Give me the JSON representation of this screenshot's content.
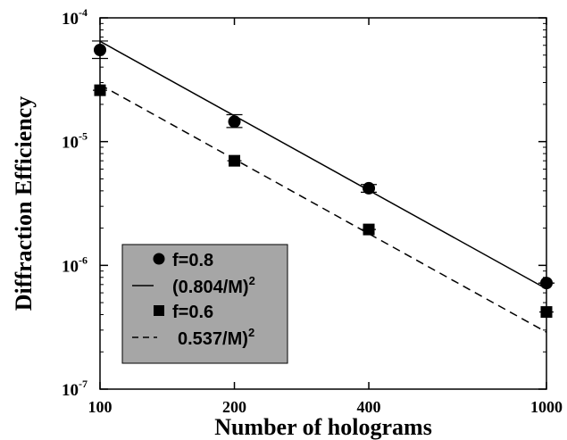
{
  "chart_data": {
    "type": "scatter",
    "xlabel": "Number of holograms",
    "ylabel": "Diffraction Efficiency",
    "x_scale": "log",
    "y_scale": "log",
    "xlim": [
      100,
      1000
    ],
    "ylim": [
      1e-07,
      0.0001
    ],
    "x_ticks": [
      100,
      200,
      400,
      1000
    ],
    "x_tick_labels": [
      "100",
      "200",
      "400",
      "1000"
    ],
    "y_ticks": [
      {
        "value": 0.0001,
        "base": "10",
        "exp": "-4"
      },
      {
        "value": 1e-05,
        "base": "10",
        "exp": "-5"
      },
      {
        "value": 1e-06,
        "base": "10",
        "exp": "-6"
      },
      {
        "value": 1e-07,
        "base": "10",
        "exp": "-7"
      }
    ],
    "grid": false,
    "legend_position": "bottom-left",
    "legend_background": "#a6a6a6",
    "series": [
      {
        "name": "f=0.8",
        "marker": "circle",
        "x": [
          100,
          200,
          400,
          1000
        ],
        "y": [
          5.5e-05,
          1.45e-05,
          4.2e-06,
          7.2e-07
        ],
        "yerr_low": [
          4.7e-05,
          1.3e-05,
          3.9e-06,
          7.2e-07
        ],
        "yerr_high": [
          6.5e-05,
          1.65e-05,
          4.5e-06,
          7.2e-07
        ]
      },
      {
        "name": "(0.804/M)",
        "name_sup": "2",
        "style": "solid",
        "coefficient": 0.804,
        "x": [
          100,
          1000
        ]
      },
      {
        "name": "f=0.6",
        "marker": "square",
        "x": [
          100,
          200,
          400,
          1000
        ],
        "y": [
          2.6e-05,
          7e-06,
          1.95e-06,
          4.2e-07
        ]
      },
      {
        "name": "0.537/M)",
        "name_sup": "2",
        "style": "dashed",
        "coefficient": 0.537,
        "x": [
          100,
          1000
        ]
      }
    ]
  }
}
